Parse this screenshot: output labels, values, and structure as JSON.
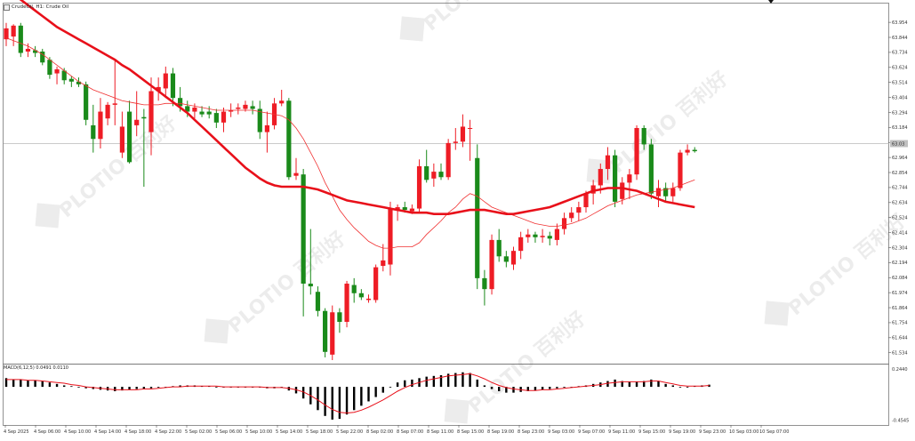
{
  "header": {
    "symbol_label": "CrudeOil, H1:  Crude Oil"
  },
  "current_price_tag": "63.03",
  "price_axis": {
    "ticks": [
      "63.954",
      "63.844",
      "63.734",
      "63.624",
      "63.514",
      "63.404",
      "63.294",
      "63.184",
      "63.074",
      "62.964",
      "62.854",
      "62.744",
      "62.634",
      "62.524",
      "62.414",
      "62.304",
      "62.194",
      "62.084",
      "61.974",
      "61.864",
      "61.754",
      "61.644",
      "61.534"
    ],
    "min": 61.48,
    "max": 64.02
  },
  "macd": {
    "label": "MACD(6,12,5) 0.0491 0.0110",
    "axis_ticks": [
      "0.2440",
      "-0.4545"
    ],
    "min": -0.5,
    "max": 0.27
  },
  "time_axis": {
    "labels": [
      "4 Sep 2025",
      "4 Sep 06:00",
      "4 Sep 10:00",
      "4 Sep 14:00",
      "4 Sep 18:00",
      "4 Sep 22:00",
      "5 Sep 02:00",
      "5 Sep 06:00",
      "5 Sep 10:00",
      "5 Sep 14:00",
      "5 Sep 18:00",
      "5 Sep 22:00",
      "8 Sep 02:00",
      "8 Sep 07:00",
      "8 Sep 11:00",
      "8 Sep 15:00",
      "8 Sep 19:00",
      "8 Sep 23:00",
      "9 Sep 03:00",
      "9 Sep 07:00",
      "9 Sep 11:00",
      "9 Sep 15:00",
      "9 Sep 19:00",
      "9 Sep 23:00",
      "10 Sep 03:00",
      "10 Sep 07:00"
    ]
  },
  "watermark": "PLOTIO 百利好",
  "colors": {
    "bull": "#ee1c25",
    "bear": "#1a8a1a",
    "ma_fast": "#f03030",
    "ma_slow": "#e8101a",
    "macd_signal": "#e8101a",
    "histogram": "#000000",
    "grid": "#b8b8b8"
  },
  "chart_data": {
    "type": "candlestick",
    "candles": [
      {
        "o": 63.83,
        "h": 63.95,
        "l": 63.78,
        "c": 63.91
      },
      {
        "o": 63.85,
        "h": 63.94,
        "l": 63.78,
        "c": 63.93
      },
      {
        "o": 63.93,
        "h": 63.95,
        "l": 63.7,
        "c": 63.73
      },
      {
        "o": 63.74,
        "h": 63.8,
        "l": 63.7,
        "c": 63.76
      },
      {
        "o": 63.75,
        "h": 63.78,
        "l": 63.7,
        "c": 63.73
      },
      {
        "o": 63.74,
        "h": 63.76,
        "l": 63.64,
        "c": 63.66
      },
      {
        "o": 63.68,
        "h": 63.7,
        "l": 63.54,
        "c": 63.57
      },
      {
        "o": 63.58,
        "h": 63.63,
        "l": 63.5,
        "c": 63.61
      },
      {
        "o": 63.6,
        "h": 63.62,
        "l": 63.5,
        "c": 63.53
      },
      {
        "o": 63.54,
        "h": 63.56,
        "l": 63.48,
        "c": 63.52
      },
      {
        "o": 63.52,
        "h": 63.55,
        "l": 63.48,
        "c": 63.5
      },
      {
        "o": 63.5,
        "h": 63.52,
        "l": 63.2,
        "c": 63.24
      },
      {
        "o": 63.2,
        "h": 63.35,
        "l": 63.0,
        "c": 63.1
      },
      {
        "o": 63.1,
        "h": 63.4,
        "l": 63.03,
        "c": 63.3
      },
      {
        "o": 63.25,
        "h": 63.37,
        "l": 63.2,
        "c": 63.35
      },
      {
        "o": 63.35,
        "h": 63.68,
        "l": 63.2,
        "c": 63.36
      },
      {
        "o": 63.0,
        "h": 63.3,
        "l": 62.96,
        "c": 63.19
      },
      {
        "o": 63.3,
        "h": 63.38,
        "l": 62.92,
        "c": 62.93
      },
      {
        "o": 63.2,
        "h": 63.45,
        "l": 63.12,
        "c": 63.24
      },
      {
        "o": 63.26,
        "h": 63.32,
        "l": 62.75,
        "c": 63.25
      },
      {
        "o": 63.15,
        "h": 63.55,
        "l": 62.98,
        "c": 63.45
      },
      {
        "o": 63.45,
        "h": 63.55,
        "l": 63.38,
        "c": 63.48
      },
      {
        "o": 63.47,
        "h": 63.63,
        "l": 63.4,
        "c": 63.58
      },
      {
        "o": 63.58,
        "h": 63.62,
        "l": 63.34,
        "c": 63.4
      },
      {
        "o": 63.4,
        "h": 63.48,
        "l": 63.3,
        "c": 63.34
      },
      {
        "o": 63.34,
        "h": 63.38,
        "l": 63.26,
        "c": 63.3
      },
      {
        "o": 63.3,
        "h": 63.36,
        "l": 63.25,
        "c": 63.33
      },
      {
        "o": 63.3,
        "h": 63.34,
        "l": 63.26,
        "c": 63.28
      },
      {
        "o": 63.3,
        "h": 63.34,
        "l": 63.25,
        "c": 63.28
      },
      {
        "o": 63.29,
        "h": 63.32,
        "l": 63.18,
        "c": 63.22
      },
      {
        "o": 63.22,
        "h": 63.33,
        "l": 63.15,
        "c": 63.3
      },
      {
        "o": 63.3,
        "h": 63.36,
        "l": 63.26,
        "c": 63.31
      },
      {
        "o": 63.32,
        "h": 63.36,
        "l": 63.28,
        "c": 63.33
      },
      {
        "o": 63.32,
        "h": 63.38,
        "l": 63.3,
        "c": 63.35
      },
      {
        "o": 63.34,
        "h": 63.38,
        "l": 63.28,
        "c": 63.32
      },
      {
        "o": 63.32,
        "h": 63.38,
        "l": 63.1,
        "c": 63.15
      },
      {
        "o": 63.15,
        "h": 63.3,
        "l": 63.0,
        "c": 63.2
      },
      {
        "o": 63.2,
        "h": 63.4,
        "l": 63.17,
        "c": 63.36
      },
      {
        "o": 63.36,
        "h": 63.46,
        "l": 63.34,
        "c": 63.38
      },
      {
        "o": 63.38,
        "h": 63.4,
        "l": 62.8,
        "c": 62.82
      },
      {
        "o": 62.83,
        "h": 62.96,
        "l": 62.8,
        "c": 62.85
      },
      {
        "o": 62.84,
        "h": 62.88,
        "l": 61.8,
        "c": 62.04
      },
      {
        "o": 62.04,
        "h": 62.44,
        "l": 61.96,
        "c": 62.02
      },
      {
        "o": 61.98,
        "h": 62.02,
        "l": 61.8,
        "c": 61.84
      },
      {
        "o": 61.84,
        "h": 61.86,
        "l": 61.5,
        "c": 61.54
      },
      {
        "o": 61.52,
        "h": 61.88,
        "l": 61.48,
        "c": 61.83
      },
      {
        "o": 61.83,
        "h": 61.86,
        "l": 61.68,
        "c": 61.76
      },
      {
        "o": 61.76,
        "h": 62.06,
        "l": 61.72,
        "c": 62.04
      },
      {
        "o": 62.03,
        "h": 62.08,
        "l": 61.9,
        "c": 61.97
      },
      {
        "o": 61.97,
        "h": 62.0,
        "l": 61.92,
        "c": 61.94
      },
      {
        "o": 61.92,
        "h": 61.96,
        "l": 61.9,
        "c": 61.93
      },
      {
        "o": 61.92,
        "h": 62.18,
        "l": 61.9,
        "c": 62.16
      },
      {
        "o": 62.17,
        "h": 62.33,
        "l": 62.13,
        "c": 62.21
      },
      {
        "o": 62.18,
        "h": 62.64,
        "l": 62.1,
        "c": 62.59
      },
      {
        "o": 62.58,
        "h": 62.62,
        "l": 62.5,
        "c": 62.6
      },
      {
        "o": 62.6,
        "h": 62.64,
        "l": 62.56,
        "c": 62.58
      },
      {
        "o": 62.57,
        "h": 62.62,
        "l": 62.55,
        "c": 62.59
      },
      {
        "o": 62.59,
        "h": 62.95,
        "l": 62.56,
        "c": 62.9
      },
      {
        "o": 62.9,
        "h": 63.02,
        "l": 62.78,
        "c": 62.8
      },
      {
        "o": 62.81,
        "h": 62.92,
        "l": 62.75,
        "c": 62.86
      },
      {
        "o": 62.86,
        "h": 62.92,
        "l": 62.8,
        "c": 62.82
      },
      {
        "o": 62.82,
        "h": 63.1,
        "l": 62.8,
        "c": 63.07
      },
      {
        "o": 63.07,
        "h": 63.18,
        "l": 63.02,
        "c": 63.08
      },
      {
        "o": 63.08,
        "h": 63.28,
        "l": 63.04,
        "c": 63.19
      },
      {
        "o": 63.18,
        "h": 63.24,
        "l": 62.94,
        "c": 63.18
      },
      {
        "o": 62.96,
        "h": 63.06,
        "l": 62.0,
        "c": 62.08
      },
      {
        "o": 62.08,
        "h": 62.14,
        "l": 61.88,
        "c": 62.0
      },
      {
        "o": 62.0,
        "h": 62.4,
        "l": 61.96,
        "c": 62.36
      },
      {
        "o": 62.36,
        "h": 62.44,
        "l": 62.2,
        "c": 62.24
      },
      {
        "o": 62.24,
        "h": 62.28,
        "l": 62.16,
        "c": 62.2
      },
      {
        "o": 62.18,
        "h": 62.31,
        "l": 62.14,
        "c": 62.28
      },
      {
        "o": 62.28,
        "h": 62.42,
        "l": 62.22,
        "c": 62.38
      },
      {
        "o": 62.38,
        "h": 62.44,
        "l": 62.34,
        "c": 62.4
      },
      {
        "o": 62.4,
        "h": 62.42,
        "l": 62.34,
        "c": 62.38
      },
      {
        "o": 62.38,
        "h": 62.44,
        "l": 62.34,
        "c": 62.39
      },
      {
        "o": 62.39,
        "h": 62.42,
        "l": 62.32,
        "c": 62.37
      },
      {
        "o": 62.36,
        "h": 62.48,
        "l": 62.32,
        "c": 62.44
      },
      {
        "o": 62.44,
        "h": 62.56,
        "l": 62.4,
        "c": 62.52
      },
      {
        "o": 62.52,
        "h": 62.6,
        "l": 62.49,
        "c": 62.56
      },
      {
        "o": 62.56,
        "h": 62.64,
        "l": 62.5,
        "c": 62.6
      },
      {
        "o": 62.6,
        "h": 62.72,
        "l": 62.56,
        "c": 62.7
      },
      {
        "o": 62.7,
        "h": 62.8,
        "l": 62.62,
        "c": 62.76
      },
      {
        "o": 62.76,
        "h": 62.92,
        "l": 62.7,
        "c": 62.88
      },
      {
        "o": 62.88,
        "h": 63.04,
        "l": 62.8,
        "c": 62.98
      },
      {
        "o": 62.98,
        "h": 63.02,
        "l": 62.6,
        "c": 62.64
      },
      {
        "o": 62.66,
        "h": 62.82,
        "l": 62.62,
        "c": 62.78
      },
      {
        "o": 62.78,
        "h": 62.88,
        "l": 62.66,
        "c": 62.84
      },
      {
        "o": 62.84,
        "h": 63.2,
        "l": 62.8,
        "c": 63.18
      },
      {
        "o": 63.18,
        "h": 63.2,
        "l": 63.02,
        "c": 63.06
      },
      {
        "o": 63.06,
        "h": 63.1,
        "l": 62.66,
        "c": 62.7
      },
      {
        "o": 62.68,
        "h": 62.8,
        "l": 62.6,
        "c": 62.74
      },
      {
        "o": 62.74,
        "h": 62.78,
        "l": 62.64,
        "c": 62.68
      },
      {
        "o": 62.68,
        "h": 62.78,
        "l": 62.64,
        "c": 62.74
      },
      {
        "o": 62.74,
        "h": 63.02,
        "l": 62.72,
        "c": 63.0
      },
      {
        "o": 63.0,
        "h": 63.06,
        "l": 62.98,
        "c": 63.02
      },
      {
        "o": 63.02,
        "h": 63.04,
        "l": 63.0,
        "c": 63.01
      }
    ],
    "ma_fast": [
      63.84,
      63.82,
      63.8,
      63.78,
      63.75,
      63.72,
      63.68,
      63.64,
      63.6,
      63.56,
      63.52,
      63.49,
      63.46,
      63.44,
      63.42,
      63.4,
      63.38,
      63.37,
      63.36,
      63.35,
      63.35,
      63.35,
      63.36,
      63.36,
      63.36,
      63.35,
      63.34,
      63.33,
      63.32,
      63.31,
      63.31,
      63.31,
      63.31,
      63.31,
      63.31,
      63.3,
      63.29,
      63.28,
      63.27,
      63.24,
      63.18,
      63.1,
      63.0,
      62.9,
      62.78,
      62.68,
      62.58,
      62.51,
      62.45,
      62.4,
      62.35,
      62.32,
      62.3,
      62.3,
      62.31,
      62.31,
      62.31,
      62.34,
      62.4,
      62.45,
      62.5,
      62.56,
      62.6,
      62.66,
      62.7,
      62.68,
      62.64,
      62.6,
      62.58,
      62.56,
      62.54,
      62.52,
      62.5,
      62.48,
      62.47,
      62.46,
      62.46,
      62.47,
      62.48,
      62.5,
      62.52,
      62.55,
      62.58,
      62.61,
      62.63,
      62.65,
      62.67,
      62.69,
      62.7,
      62.71,
      62.72,
      62.73,
      62.74,
      62.76,
      62.78,
      62.8
    ],
    "ma_slow": [
      64.2,
      64.16,
      64.12,
      64.08,
      64.04,
      64.0,
      63.96,
      63.92,
      63.89,
      63.86,
      63.83,
      63.8,
      63.77,
      63.74,
      63.71,
      63.68,
      63.64,
      63.61,
      63.57,
      63.53,
      63.49,
      63.45,
      63.41,
      63.37,
      63.33,
      63.29,
      63.24,
      63.19,
      63.14,
      63.09,
      63.04,
      62.99,
      62.94,
      62.89,
      62.85,
      62.81,
      62.78,
      62.76,
      62.75,
      62.75,
      62.75,
      62.75,
      62.74,
      62.73,
      62.71,
      62.69,
      62.67,
      62.65,
      62.64,
      62.63,
      62.62,
      62.61,
      62.6,
      62.59,
      62.58,
      62.57,
      62.56,
      62.56,
      62.56,
      62.55,
      62.55,
      62.55,
      62.56,
      62.57,
      62.58,
      62.58,
      62.58,
      62.57,
      62.56,
      62.55,
      62.55,
      62.56,
      62.57,
      62.58,
      62.59,
      62.6,
      62.62,
      62.64,
      62.66,
      62.68,
      62.7,
      62.72,
      62.73,
      62.74,
      62.74,
      62.74,
      62.73,
      62.72,
      62.7,
      62.68,
      62.66,
      62.64,
      62.63,
      62.62,
      62.61,
      62.6
    ],
    "macd_hist": [
      0.12,
      0.1,
      0.1,
      0.09,
      0.09,
      0.08,
      0.06,
      0.04,
      0.02,
      0.01,
      0.0,
      -0.02,
      -0.03,
      -0.04,
      -0.05,
      -0.06,
      -0.05,
      -0.04,
      -0.03,
      -0.03,
      -0.02,
      -0.01,
      0.0,
      0.01,
      0.02,
      0.02,
      0.02,
      0.01,
      0.01,
      0.0,
      0.0,
      0.0,
      0.0,
      0.0,
      0.0,
      -0.01,
      -0.02,
      -0.02,
      -0.01,
      -0.05,
      -0.09,
      -0.16,
      -0.24,
      -0.32,
      -0.4,
      -0.45,
      -0.44,
      -0.38,
      -0.32,
      -0.26,
      -0.2,
      -0.14,
      -0.08,
      0.0,
      0.06,
      0.09,
      0.1,
      0.12,
      0.14,
      0.15,
      0.16,
      0.18,
      0.19,
      0.2,
      0.19,
      0.1,
      0.02,
      -0.03,
      -0.06,
      -0.08,
      -0.08,
      -0.07,
      -0.06,
      -0.05,
      -0.04,
      -0.03,
      -0.02,
      -0.01,
      0.0,
      0.01,
      0.02,
      0.04,
      0.06,
      0.08,
      0.1,
      0.08,
      0.07,
      0.07,
      0.08,
      0.1,
      0.08,
      0.04,
      0.02,
      0.0,
      -0.01,
      0.01,
      0.02,
      0.03
    ],
    "macd_signal": [
      0.1,
      0.1,
      0.1,
      0.09,
      0.09,
      0.08,
      0.07,
      0.06,
      0.05,
      0.03,
      0.02,
      0.0,
      -0.01,
      -0.02,
      -0.03,
      -0.04,
      -0.04,
      -0.04,
      -0.04,
      -0.03,
      -0.03,
      -0.02,
      -0.01,
      0.0,
      0.0,
      0.01,
      0.01,
      0.01,
      0.01,
      0.01,
      0.0,
      0.0,
      0.0,
      0.0,
      0.0,
      0.0,
      -0.01,
      -0.01,
      -0.01,
      -0.02,
      -0.04,
      -0.07,
      -0.12,
      -0.18,
      -0.25,
      -0.31,
      -0.35,
      -0.36,
      -0.35,
      -0.32,
      -0.28,
      -0.23,
      -0.18,
      -0.12,
      -0.06,
      -0.01,
      0.03,
      0.06,
      0.09,
      0.11,
      0.13,
      0.15,
      0.16,
      0.17,
      0.18,
      0.15,
      0.11,
      0.06,
      0.02,
      -0.01,
      -0.03,
      -0.04,
      -0.05,
      -0.05,
      -0.04,
      -0.04,
      -0.03,
      -0.02,
      -0.01,
      0.0,
      0.01,
      0.02,
      0.03,
      0.05,
      0.06,
      0.07,
      0.07,
      0.07,
      0.07,
      0.08,
      0.08,
      0.06,
      0.04,
      0.02,
      0.01,
      0.01,
      0.01,
      0.02
    ]
  }
}
